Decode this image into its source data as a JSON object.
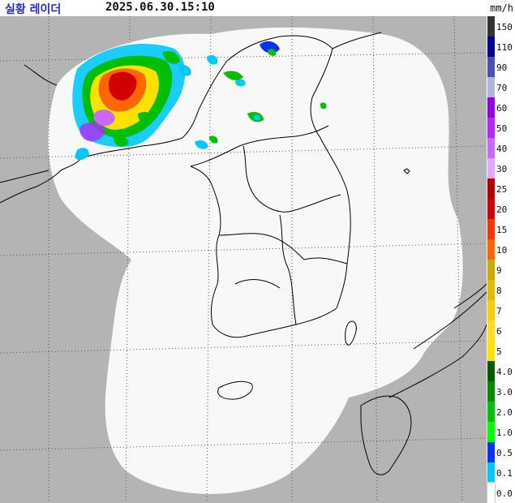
{
  "header": {
    "title": "실황 레이더",
    "timestamp": "2025.06.30.15:10",
    "unit": "mm/h"
  },
  "colors": {
    "outside": "#b4b4b4",
    "radar_coverage": "#f8f8f8",
    "border": "#000000"
  },
  "legend": {
    "levels": [
      {
        "label": "150",
        "color": "#333333"
      },
      {
        "label": "110",
        "color": "#000390"
      },
      {
        "label": "90",
        "color": "#4c4eb1"
      },
      {
        "label": "70",
        "color": "#b3b4de"
      },
      {
        "label": "60",
        "color": "#9300e4"
      },
      {
        "label": "50",
        "color": "#b229ff"
      },
      {
        "label": "40",
        "color": "#c969ff"
      },
      {
        "label": "30",
        "color": "#e0a9ff"
      },
      {
        "label": "25",
        "color": "#b40000"
      },
      {
        "label": "20",
        "color": "#d20000"
      },
      {
        "label": "15",
        "color": "#ff3200"
      },
      {
        "label": "10",
        "color": "#ff6600"
      },
      {
        "label": "9",
        "color": "#ccaa00"
      },
      {
        "label": "8",
        "color": "#e0b900"
      },
      {
        "label": "7",
        "color": "#f9cd00"
      },
      {
        "label": "6",
        "color": "#ffdc1f"
      },
      {
        "label": "5",
        "color": "#ffe100"
      },
      {
        "label": "4.0",
        "color": "#005a00"
      },
      {
        "label": "3.0",
        "color": "#008c00"
      },
      {
        "label": "2.0",
        "color": "#00be00"
      },
      {
        "label": "1.0",
        "color": "#00ff00"
      },
      {
        "label": "0.5",
        "color": "#0033f5"
      },
      {
        "label": "0.1",
        "color": "#00c8ff"
      },
      {
        "label": "0.0",
        "color": "#ffffff"
      }
    ]
  }
}
